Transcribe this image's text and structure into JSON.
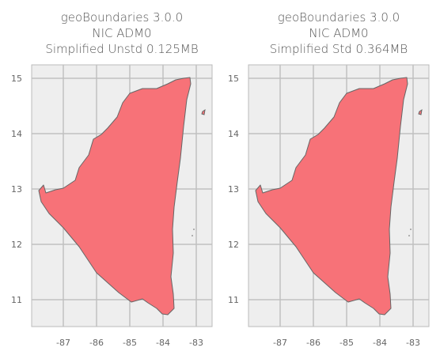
{
  "maps": [
    {
      "title_lines": [
        "geoBoundaries 3.0.0",
        "NIC ADM0",
        "Simplified Unstd 0.125MB"
      ],
      "x_ticks": [
        "-87",
        "-86",
        "-85",
        "-84",
        "-83"
      ],
      "y_ticks": [
        "15",
        "14",
        "13",
        "12",
        "11"
      ],
      "fill": "#f77278",
      "background": "#eeeeee"
    },
    {
      "title_lines": [
        "geoBoundaries 3.0.0",
        "NIC ADM0",
        "Simplified Std 0.364MB"
      ],
      "x_ticks": [
        "-87",
        "-86",
        "-85",
        "-84",
        "-83"
      ],
      "y_ticks": [
        "15",
        "14",
        "13",
        "12",
        "11"
      ],
      "fill": "#f77278",
      "background": "#eeeeee"
    }
  ]
}
